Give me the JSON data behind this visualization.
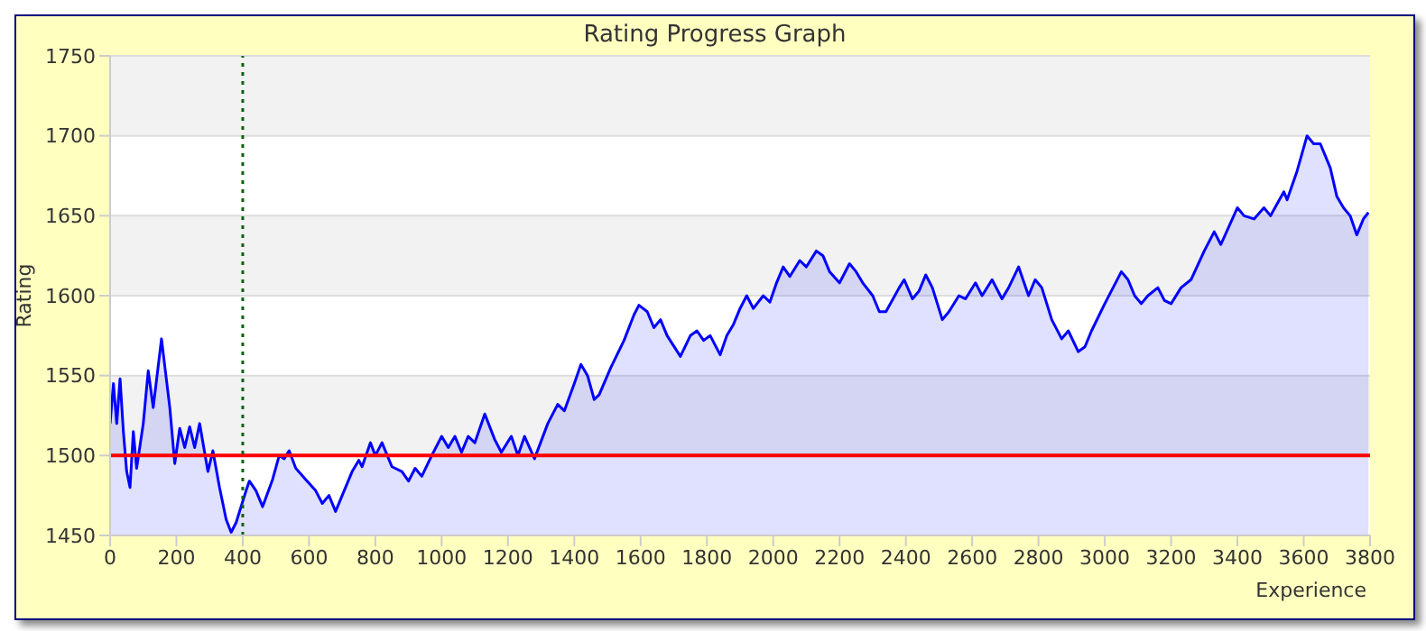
{
  "chart_data": {
    "type": "area",
    "title": "Rating Progress Graph",
    "xlabel": "Experience",
    "ylabel": "Rating",
    "xlim": [
      0,
      3800
    ],
    "xticks": [
      0,
      200,
      400,
      600,
      800,
      1000,
      1200,
      1400,
      1600,
      1800,
      2000,
      2200,
      2400,
      2600,
      2800,
      3000,
      3200,
      3400,
      3600,
      3800
    ],
    "ylim": [
      1450,
      1750
    ],
    "yticks": [
      1450,
      1500,
      1550,
      1600,
      1650,
      1700,
      1750
    ],
    "grid": "y",
    "legend": false,
    "ref_lines": [
      {
        "axis": "y",
        "value": 1500,
        "color": "#ff0000",
        "line_style": "solid"
      },
      {
        "axis": "x",
        "value": 400,
        "color": "#006600",
        "line_style": "dotted"
      }
    ],
    "series": [
      {
        "color": "#0000ff",
        "x": [
          0,
          10,
          20,
          30,
          40,
          50,
          60,
          70,
          80,
          100,
          115,
          130,
          155,
          180,
          195,
          210,
          225,
          240,
          255,
          270,
          295,
          310,
          330,
          350,
          365,
          380,
          410,
          420,
          440,
          460,
          490,
          510,
          525,
          540,
          560,
          590,
          620,
          640,
          660,
          680,
          700,
          730,
          750,
          760,
          785,
          800,
          820,
          850,
          880,
          900,
          920,
          940,
          970,
          1000,
          1020,
          1040,
          1060,
          1080,
          1100,
          1130,
          1160,
          1180,
          1210,
          1230,
          1250,
          1280,
          1320,
          1350,
          1370,
          1400,
          1420,
          1440,
          1460,
          1475,
          1510,
          1550,
          1580,
          1595,
          1620,
          1640,
          1660,
          1680,
          1720,
          1750,
          1770,
          1790,
          1810,
          1840,
          1860,
          1880,
          1900,
          1920,
          1940,
          1970,
          1990,
          2010,
          2030,
          2050,
          2080,
          2100,
          2130,
          2150,
          2170,
          2200,
          2230,
          2250,
          2270,
          2300,
          2320,
          2340,
          2380,
          2395,
          2420,
          2440,
          2460,
          2480,
          2510,
          2530,
          2560,
          2580,
          2610,
          2630,
          2660,
          2690,
          2710,
          2740,
          2770,
          2790,
          2810,
          2840,
          2870,
          2890,
          2920,
          2940,
          2960,
          3000,
          3050,
          3070,
          3090,
          3110,
          3130,
          3160,
          3180,
          3200,
          3230,
          3260,
          3300,
          3330,
          3350,
          3400,
          3420,
          3450,
          3480,
          3500,
          3540,
          3550,
          3580,
          3610,
          3630,
          3650,
          3680,
          3700,
          3720,
          3740,
          3760,
          3780,
          3795
        ],
        "values": [
          1520,
          1545,
          1520,
          1548,
          1515,
          1490,
          1480,
          1515,
          1492,
          1520,
          1553,
          1530,
          1573,
          1530,
          1495,
          1517,
          1505,
          1518,
          1505,
          1520,
          1490,
          1503,
          1480,
          1460,
          1452,
          1458,
          1478,
          1484,
          1478,
          1468,
          1485,
          1500,
          1498,
          1503,
          1492,
          1485,
          1478,
          1470,
          1475,
          1465,
          1475,
          1490,
          1497,
          1493,
          1508,
          1500,
          1508,
          1493,
          1490,
          1484,
          1492,
          1487,
          1500,
          1512,
          1505,
          1512,
          1502,
          1512,
          1508,
          1526,
          1510,
          1502,
          1512,
          1500,
          1512,
          1498,
          1520,
          1532,
          1528,
          1545,
          1557,
          1550,
          1535,
          1538,
          1555,
          1572,
          1588,
          1594,
          1590,
          1580,
          1585,
          1575,
          1562,
          1575,
          1578,
          1572,
          1575,
          1563,
          1575,
          1582,
          1592,
          1600,
          1592,
          1600,
          1596,
          1608,
          1618,
          1612,
          1622,
          1618,
          1628,
          1625,
          1615,
          1608,
          1620,
          1615,
          1608,
          1600,
          1590,
          1590,
          1605,
          1610,
          1598,
          1603,
          1613,
          1605,
          1585,
          1590,
          1600,
          1598,
          1608,
          1600,
          1610,
          1598,
          1605,
          1618,
          1600,
          1610,
          1605,
          1585,
          1573,
          1578,
          1565,
          1568,
          1578,
          1595,
          1615,
          1610,
          1600,
          1595,
          1600,
          1605,
          1597,
          1595,
          1605,
          1610,
          1628,
          1640,
          1632,
          1655,
          1650,
          1648,
          1655,
          1650,
          1665,
          1660,
          1678,
          1700,
          1695,
          1695,
          1680,
          1662,
          1655,
          1650,
          1638,
          1648,
          1652
        ]
      }
    ]
  }
}
